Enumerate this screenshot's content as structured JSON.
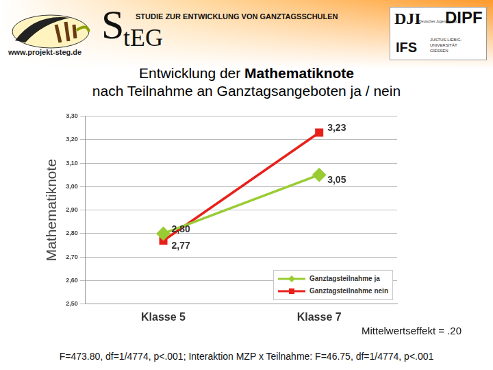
{
  "header": {
    "study": "STUDIE ZUR ENTWICKLUNG VON GANZTAGSSCHULEN",
    "logo": "StEG",
    "url": "www.projekt-steg.de",
    "partners": [
      "DJI",
      "Deutsches Jugendinstitut",
      "DIPF",
      "IFS",
      "JUSTUS-LIEBIG-UNIVERSITÄT GIESSEN"
    ]
  },
  "title": [
    "Entwicklung der Mathematiknote",
    "nach Teilnahme an Ganztagsangeboten ja / nein"
  ],
  "title_bold": "Mathematiknote",
  "chart_data": {
    "type": "line",
    "y_label": "Mathematiknote",
    "categories": [
      "Klasse 5",
      "Klasse 7"
    ],
    "series": [
      {
        "name": "Ganztagsteilnahme ja",
        "color": "#99cc33",
        "marker": "diamond",
        "values": [
          2.8,
          3.05
        ],
        "value_labels": [
          "2,80",
          "3,05"
        ]
      },
      {
        "name": "Ganztagsteilnahme nein",
        "color": "#e8201a",
        "marker": "square",
        "values": [
          2.77,
          3.23
        ],
        "value_labels": [
          "2,77",
          "3,23"
        ]
      }
    ],
    "ylim": [
      2.5,
      3.3
    ],
    "yticks": [
      {
        "value": 2.5,
        "label": "2,50"
      },
      {
        "value": 2.6,
        "label": "2,60"
      },
      {
        "value": 2.7,
        "label": "2,70"
      },
      {
        "value": 2.8,
        "label": "2,80"
      },
      {
        "value": 2.9,
        "label": "2,90"
      },
      {
        "value": 3.0,
        "label": "3,00"
      },
      {
        "value": 3.1,
        "label": "3,10"
      },
      {
        "value": 3.2,
        "label": "3,20"
      },
      {
        "value": 3.3,
        "label": "3,30"
      }
    ],
    "grid": "y",
    "legend": "lower right",
    "data_labels": true
  },
  "effect": "Mittelwertseffekt = .20",
  "footer": "F=473.80, df=1/4774, p<.001; Interaktion MZP x Teilnahme: F=46.75, df=1/4774, p<.001"
}
